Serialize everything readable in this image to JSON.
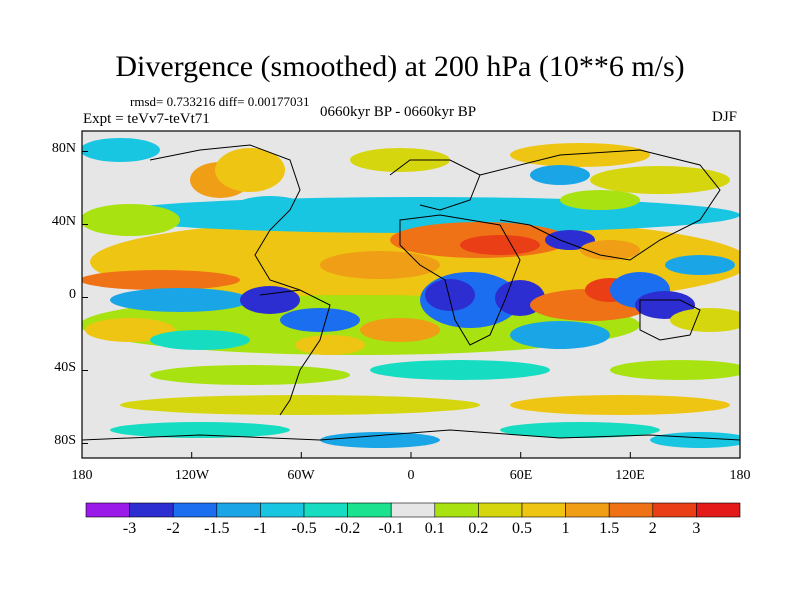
{
  "title": "Divergence (smoothed) at 200 hPa (10**6 m/s)",
  "stats": "rmsd= 0.733216 diff= 0.00177031",
  "experiment": "Expt = teVv7-teVt71",
  "period": "0660kyr BP - 0660kyr BP",
  "season": "DJF",
  "lat_labels": [
    "80N",
    "40N",
    "0",
    "40S",
    "80S"
  ],
  "lon_labels": [
    "180",
    "120W",
    "60W",
    "0",
    "60E",
    "120E",
    "180"
  ],
  "colorbar": {
    "labels": [
      "-3",
      "-2",
      "-1.5",
      "-1",
      "-0.5",
      "-0.2",
      "-0.1",
      "0.1",
      "0.2",
      "0.5",
      "1",
      "1.5",
      "2",
      "3"
    ],
    "colors": [
      "#9a1aea",
      "#2d2ed2",
      "#1c6ef0",
      "#1aa6e6",
      "#19c6e2",
      "#16dcc2",
      "#1be28e",
      "#e6e6e6",
      "#a8e210",
      "#d6d60e",
      "#eec512",
      "#f09e16",
      "#ef7216",
      "#ea3e16",
      "#e41a1a"
    ]
  }
}
